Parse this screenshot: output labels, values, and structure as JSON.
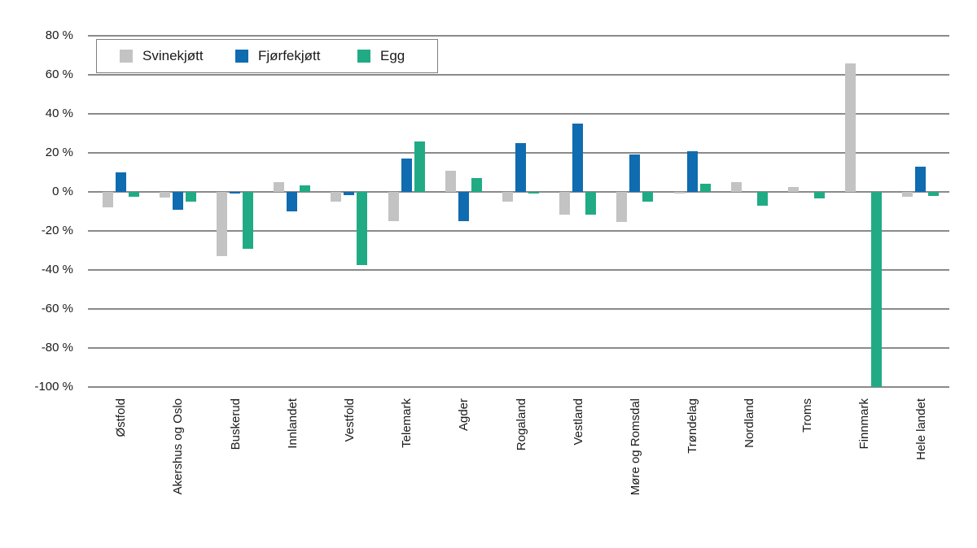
{
  "chart_data": {
    "type": "bar",
    "title": "",
    "xlabel": "",
    "ylabel": "",
    "categories": [
      "Østfold",
      "Akershus og Oslo",
      "Buskerud",
      "Innlandet",
      "Vestfold",
      "Telemark",
      "Agder",
      "Rogaland",
      "Vestland",
      "Møre og Romsdal",
      "Trøndelag",
      "Nordland",
      "Troms",
      "Finnmark",
      "Hele landet"
    ],
    "series": [
      {
        "name": "Svinekjøtt",
        "color": "#c3c3c3",
        "values": [
          -8,
          -3,
          -33,
          5,
          -5,
          -15,
          11,
          -5,
          -11.5,
          -15.5,
          -1,
          5,
          2.5,
          66,
          -2.5
        ]
      },
      {
        "name": "Fjørfekjøtt",
        "color": "#0f6cb0",
        "values": [
          10,
          -9,
          -1,
          -10,
          -1.5,
          17,
          -15,
          25,
          35,
          19,
          21,
          0,
          0,
          0,
          13
        ]
      },
      {
        "name": "Egg",
        "color": "#21ab85",
        "values": [
          -2.5,
          -5,
          -29,
          3.5,
          -37.5,
          26,
          7,
          -1,
          -11.5,
          -5,
          4,
          -7,
          -3.5,
          -100,
          -2
        ]
      }
    ],
    "ylim": [
      -100,
      80
    ],
    "ytick_step": 20,
    "yticks": [
      80,
      60,
      40,
      20,
      0,
      -20,
      -40,
      -60,
      -80,
      -100
    ],
    "ytick_labels": [
      "80 %",
      "60 %",
      "40 %",
      "20 %",
      "0 %",
      "-20 %",
      "-40 %",
      "-60 %",
      "-80 %",
      "-100 %"
    ],
    "grid": true,
    "gridline_color": "#8a8a8a",
    "legend_position": "top-left",
    "background_color": "#ffffff"
  },
  "legend": {
    "items": [
      {
        "label": "Svinekjøtt",
        "color": "#c3c3c3"
      },
      {
        "label": "Fjørfekjøtt",
        "color": "#0f6cb0"
      },
      {
        "label": "Egg",
        "color": "#21ab85"
      }
    ]
  }
}
